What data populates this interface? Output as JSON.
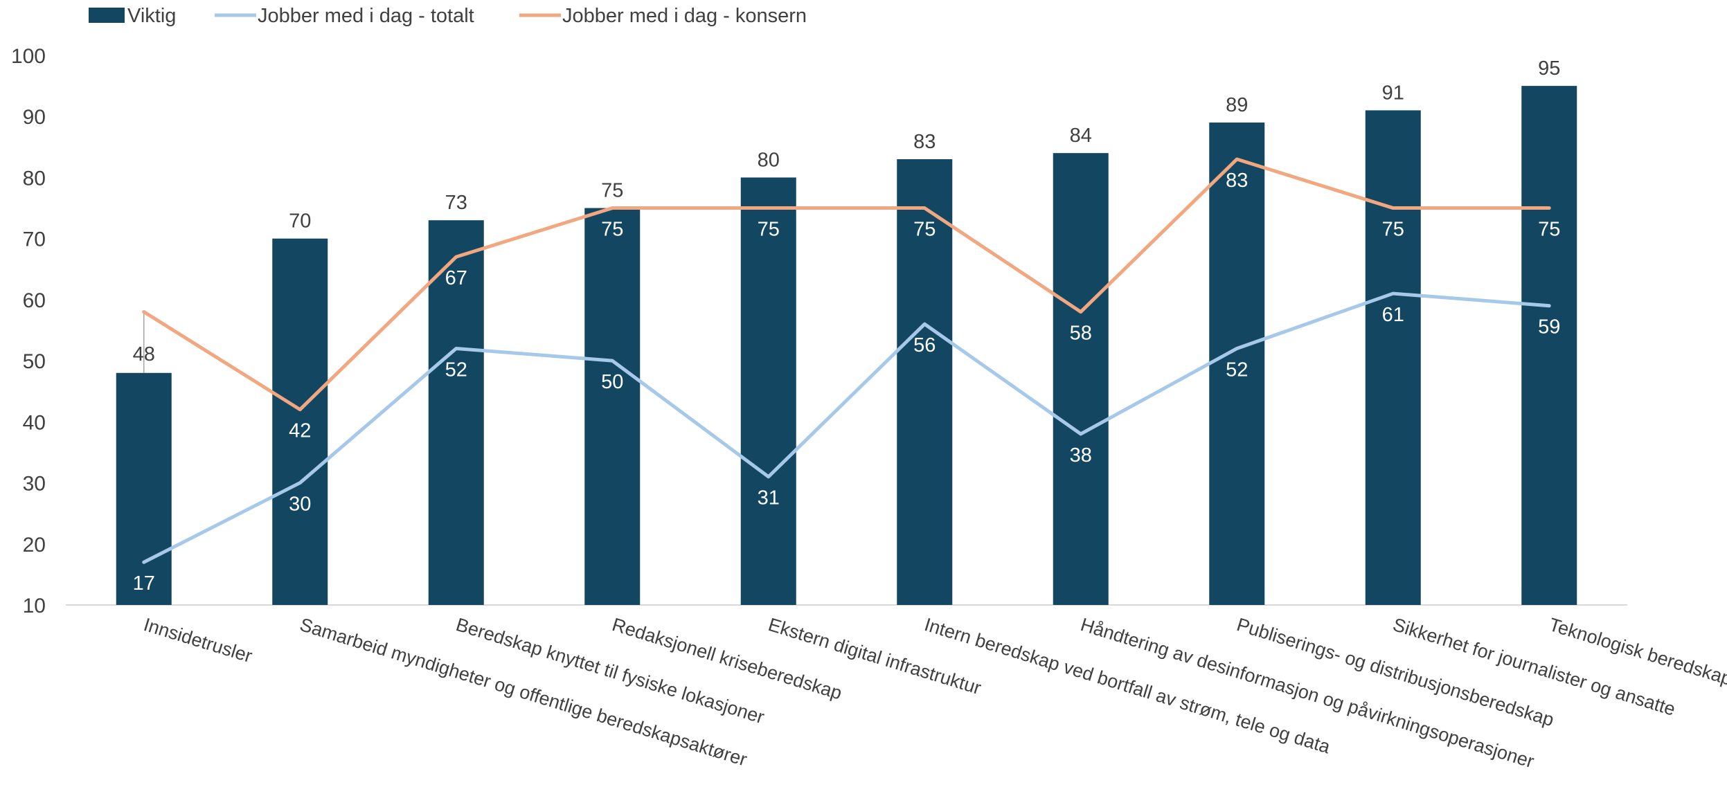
{
  "chart_data": {
    "type": "bar",
    "categories": [
      "Innsidetrusler",
      "Samarbeid myndigheter og offentlige beredskapsaktører",
      "Beredskap knyttet til fysiske lokasjoner",
      "Redaksjonell kriseberedskap",
      "Ekstern digital infrastruktur",
      "Intern beredskap ved bortfall av strøm, tele og data",
      "Håndtering av desinformasjon og påvirkningsoperasjoner",
      "Publiserings- og distribusjonsberedskap",
      "Sikkerhet for journalister og ansatte",
      "Teknologisk beredskap"
    ],
    "series": [
      {
        "name": "Viktig",
        "type": "bar",
        "color": "#134661",
        "values": [
          48,
          70,
          73,
          75,
          80,
          83,
          84,
          89,
          91,
          95
        ]
      },
      {
        "name": "Jobber med i dag - totalt",
        "type": "line",
        "color": "#a6c9ea",
        "values": [
          17,
          30,
          52,
          50,
          31,
          56,
          38,
          52,
          61,
          59
        ]
      },
      {
        "name": "Jobber med i dag - konsern",
        "type": "line",
        "color": "#f1a77f",
        "values": [
          58,
          42,
          67,
          75,
          75,
          75,
          58,
          83,
          75,
          75
        ]
      }
    ],
    "yticks": [
      "10",
      "20",
      "30",
      "40",
      "50",
      "60",
      "70",
      "80",
      "90",
      "100"
    ],
    "ylim": [
      10,
      100
    ],
    "title": "",
    "xlabel": "",
    "ylabel": "",
    "legend_position": "top-left",
    "grid": false
  }
}
